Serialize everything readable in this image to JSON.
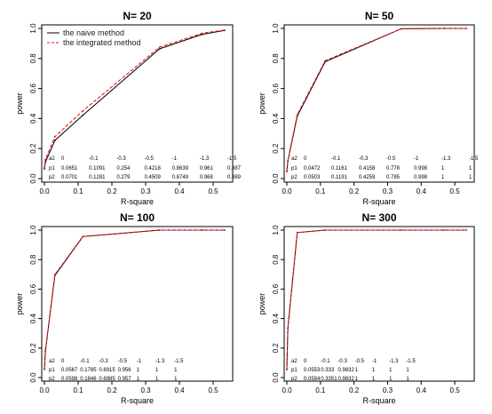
{
  "chart_data": [
    {
      "type": "line",
      "title": "N= 20",
      "xlabel": "R-square",
      "ylabel": "power",
      "xlim": [
        0.0,
        0.55
      ],
      "ylim": [
        0.0,
        1.0
      ],
      "xticks": [
        "0.0",
        "0.1",
        "0.2",
        "0.3",
        "0.4",
        "0.5"
      ],
      "yticks": [
        "0.0",
        "0.2",
        "0.4",
        "0.6",
        "0.8",
        "1.0"
      ],
      "legend": {
        "position": "top-left",
        "entries": [
          "the naive method",
          "the integrated method"
        ]
      },
      "x": [
        0.0,
        0.003,
        0.031,
        0.114,
        0.341,
        0.468,
        0.534
      ],
      "series": [
        {
          "name": "the naive method",
          "color": "#000000",
          "line": "solid",
          "values": [
            0.0651,
            0.1091,
            0.254,
            0.4218,
            0.8639,
            0.961,
            0.987
          ]
        },
        {
          "name": "the integrated method",
          "color": "#e41a1c",
          "line": "dashed",
          "values": [
            0.0701,
            0.1281,
            0.279,
            0.4509,
            0.8749,
            0.968,
            0.989
          ]
        }
      ],
      "table": {
        "row_labels": [
          "a2",
          "p1",
          "p2"
        ],
        "a2": [
          "0",
          "-0.1",
          "-0.3",
          "-0.5",
          "-1",
          "-1.3",
          "-1.5"
        ],
        "p1": [
          "0.0651",
          "0.1091",
          "0.254",
          "0.4218",
          "0.8639",
          "0.961",
          "0.987"
        ],
        "p2": [
          "0.0701",
          "0.1281",
          "0.279",
          "0.4509",
          "0.8749",
          "0.968",
          "0.989"
        ]
      }
    },
    {
      "type": "line",
      "title": "N= 50",
      "xlabel": "R-square",
      "ylabel": "power",
      "xlim": [
        0.0,
        0.55
      ],
      "ylim": [
        0.0,
        1.0
      ],
      "xticks": [
        "0.0",
        "0.1",
        "0.2",
        "0.3",
        "0.4",
        "0.5"
      ],
      "yticks": [
        "0.0",
        "0.2",
        "0.4",
        "0.6",
        "0.8",
        "1.0"
      ],
      "x": [
        0.0,
        0.003,
        0.031,
        0.114,
        0.341,
        0.468,
        0.534
      ],
      "series": [
        {
          "color": "#000000",
          "line": "solid",
          "values": [
            0.0472,
            0.1161,
            0.4158,
            0.778,
            0.998,
            1,
            1
          ]
        },
        {
          "color": "#e41a1c",
          "line": "dashed",
          "values": [
            0.0503,
            0.1191,
            0.4259,
            0.785,
            0.998,
            1,
            1
          ]
        }
      ],
      "table": {
        "row_labels": [
          "a2",
          "p1",
          "p2"
        ],
        "a2": [
          "0",
          "-0.1",
          "-0.3",
          "-0.5",
          "-1",
          "-1.3",
          "-1.5"
        ],
        "p1": [
          "0.0472",
          "0.1161",
          "0.4158",
          "0.778",
          "0.998",
          "1",
          "1"
        ],
        "p2": [
          "0.0503",
          "0.1191",
          "0.4259",
          "0.785",
          "0.998",
          "1",
          "1"
        ]
      }
    },
    {
      "type": "line",
      "title": "N= 100",
      "xlabel": "R-square",
      "ylabel": "power",
      "xlim": [
        0.0,
        0.55
      ],
      "ylim": [
        0.0,
        1.0
      ],
      "xticks": [
        "0.0",
        "0.1",
        "0.2",
        "0.3",
        "0.4",
        "0.5"
      ],
      "yticks": [
        "0.0",
        "0.2",
        "0.4",
        "0.6",
        "0.8",
        "1.0"
      ],
      "x": [
        0.0,
        0.003,
        0.031,
        0.114,
        0.341,
        0.468,
        0.534
      ],
      "series": [
        {
          "color": "#000000",
          "line": "solid",
          "values": [
            0.0567,
            0.1785,
            0.6915,
            0.956,
            1,
            1,
            1
          ]
        },
        {
          "color": "#e41a1c",
          "line": "dashed",
          "values": [
            0.0598,
            0.1846,
            0.6985,
            0.957,
            1,
            1,
            1
          ]
        }
      ],
      "table": {
        "row_labels": [
          "a2",
          "p1",
          "p2"
        ],
        "a2": [
          "0",
          "-0.1",
          "-0.3",
          "-0.5",
          "-1",
          "-1.3",
          "-1.5"
        ],
        "p1": [
          "0.0567",
          "0.1785",
          "0.6915",
          "0.956",
          "1",
          "1",
          "1"
        ],
        "p2": [
          "0.0598",
          "0.1846",
          "0.6985",
          "0.957",
          "1",
          "1",
          "1"
        ]
      }
    },
    {
      "type": "line",
      "title": "N= 300",
      "xlabel": "R-square",
      "ylabel": "power",
      "xlim": [
        0.0,
        0.55
      ],
      "ylim": [
        0.0,
        1.0
      ],
      "xticks": [
        "0.0",
        "0.1",
        "0.2",
        "0.3",
        "0.4",
        "0.5"
      ],
      "yticks": [
        "0.0",
        "0.2",
        "0.4",
        "0.6",
        "0.8",
        "1.0"
      ],
      "x": [
        0.0,
        0.003,
        0.031,
        0.114,
        0.341,
        0.468,
        0.534
      ],
      "series": [
        {
          "color": "#000000",
          "line": "solid",
          "values": [
            0.0553,
            0.333,
            0.9832,
            1,
            1,
            1,
            1
          ]
        },
        {
          "color": "#e41a1c",
          "line": "dashed",
          "values": [
            0.0584,
            0.3351,
            0.9832,
            1,
            1,
            1,
            1
          ]
        }
      ],
      "table": {
        "row_labels": [
          "a2",
          "p1",
          "p2"
        ],
        "a2": [
          "0",
          "-0.1",
          "-0.3",
          "-0.5",
          "-1",
          "-1.3",
          "-1.5"
        ],
        "p1": [
          "0.0553",
          "0.333",
          "0.9832",
          "1",
          "1",
          "1",
          "1"
        ],
        "p2": [
          "0.0584",
          "0.3351",
          "0.9832",
          "1",
          "1",
          "1",
          "1"
        ]
      }
    }
  ]
}
